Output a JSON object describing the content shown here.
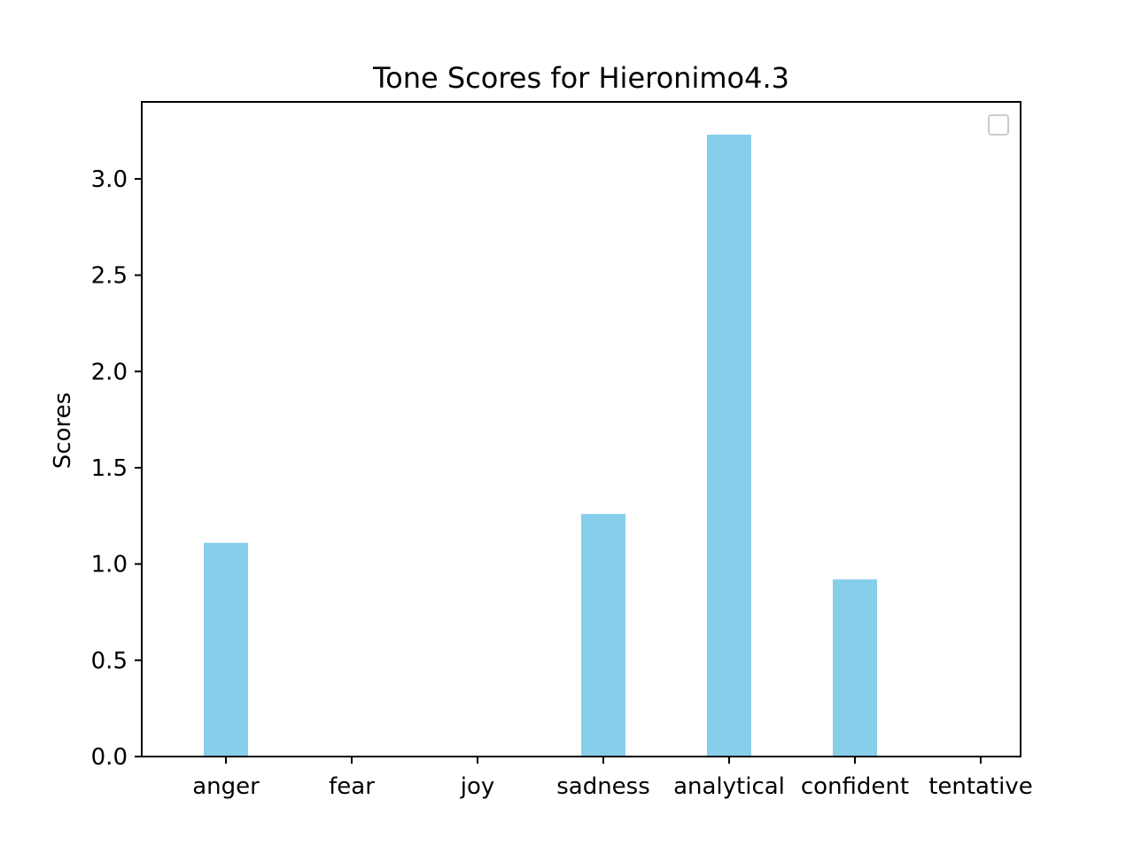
{
  "chart_data": {
    "type": "bar",
    "title": "Tone Scores for Hieronimo4.3",
    "xlabel": "",
    "ylabel": "Scores",
    "categories": [
      "anger",
      "fear",
      "joy",
      "sadness",
      "analytical",
      "confident",
      "tentative"
    ],
    "values": [
      1.11,
      0,
      0,
      1.26,
      3.23,
      0.92,
      0
    ],
    "ylim": [
      0,
      3.4
    ],
    "yticks": [
      0.0,
      0.5,
      1.0,
      1.5,
      2.0,
      2.5,
      3.0
    ],
    "ytick_labels": [
      "0.0",
      "0.5",
      "1.0",
      "1.5",
      "2.0",
      "2.5",
      "3.0"
    ],
    "bar_color": "#87CEEB",
    "grid": false,
    "legend": {
      "position": "upper-right",
      "entries": []
    }
  }
}
